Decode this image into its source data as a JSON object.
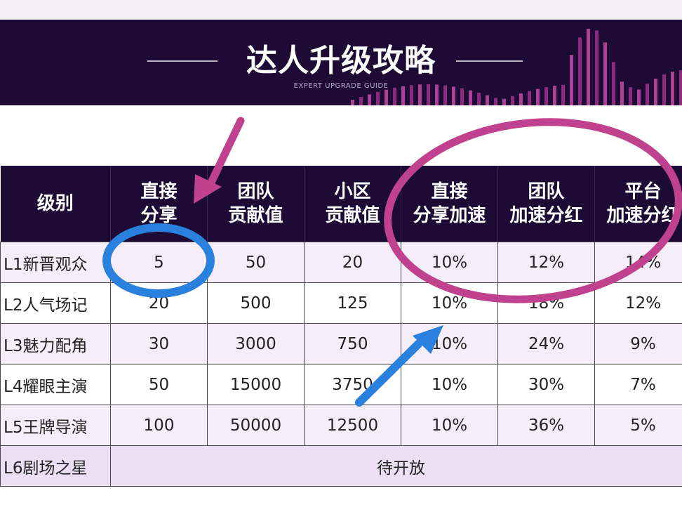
{
  "banner": {
    "title": "达人升级攻略",
    "subtitle": "EXPERT UPGRADE GUIDE"
  },
  "table": {
    "headers": [
      {
        "line1": "级别",
        "line2": ""
      },
      {
        "line1": "直接",
        "line2": "分享"
      },
      {
        "line1": "团队",
        "line2": "贡献值"
      },
      {
        "line1": "小区",
        "line2": "贡献值"
      },
      {
        "line1": "直接",
        "line2": "分享加速"
      },
      {
        "line1": "团队",
        "line2": "加速分红"
      },
      {
        "line1": "平台",
        "line2": "加速分红"
      }
    ],
    "rows": [
      {
        "level": "L1新晋观众",
        "direct_share": "5",
        "team_contribution": "50",
        "community_contribution": "20",
        "share_accel": "10%",
        "team_bonus": "12%",
        "platform_bonus": "14%"
      },
      {
        "level": "L2人气场记",
        "direct_share": "20",
        "team_contribution": "500",
        "community_contribution": "125",
        "share_accel": "10%",
        "team_bonus": "18%",
        "platform_bonus": "12%"
      },
      {
        "level": "L3魅力配角",
        "direct_share": "30",
        "team_contribution": "3000",
        "community_contribution": "750",
        "share_accel": "10%",
        "team_bonus": "24%",
        "platform_bonus": "9%"
      },
      {
        "level": "L4耀眼主演",
        "direct_share": "50",
        "team_contribution": "15000",
        "community_contribution": "3750",
        "share_accel": "10%",
        "team_bonus": "30%",
        "platform_bonus": "7%"
      },
      {
        "level": "L5王牌导演",
        "direct_share": "100",
        "team_contribution": "50000",
        "community_contribution": "12500",
        "share_accel": "10%",
        "team_bonus": "36%",
        "platform_bonus": "5%"
      }
    ],
    "last_row": {
      "level": "L6剧场之星",
      "status": "待开放"
    }
  },
  "annotations": {
    "pink_color": "#c0428e",
    "blue_color": "#2a80dd",
    "banner_bg": "#1e0b35"
  }
}
